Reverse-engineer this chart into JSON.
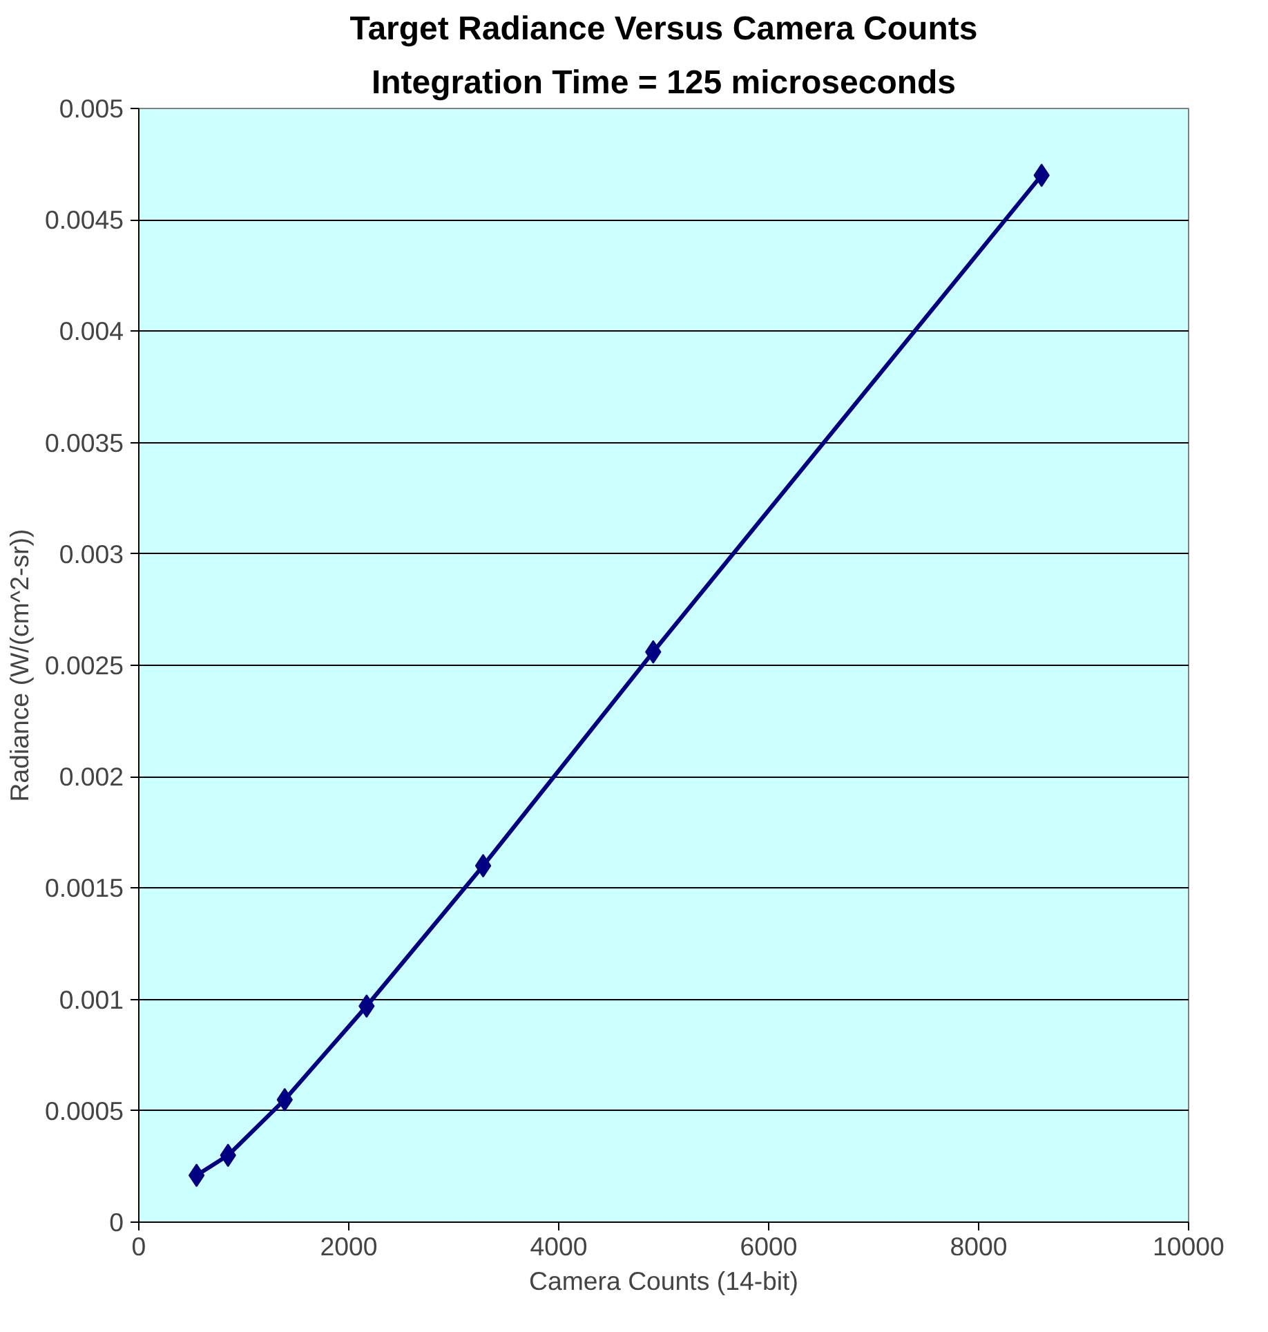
{
  "chart_data": {
    "type": "line",
    "title": "Target Radiance Versus Camera Counts",
    "subtitle": "Integration Time = 125 microseconds",
    "xlabel": "Camera Counts (14-bit)",
    "ylabel": "Radiance (W/(cm^2-sr))",
    "x": [
      550,
      850,
      1390,
      2170,
      3280,
      4900,
      8600
    ],
    "series": [
      {
        "color": "#000080",
        "values": [
          0.00021,
          0.0003,
          0.00055,
          0.00097,
          0.0016,
          0.00256,
          0.0047
        ]
      }
    ],
    "xlim": [
      0,
      10000
    ],
    "xticks": [
      0,
      2000,
      4000,
      6000,
      8000,
      10000
    ],
    "ylim": [
      0,
      0.005
    ],
    "yticks": [
      0,
      0.0005,
      0.001,
      0.0015,
      0.002,
      0.0025,
      0.003,
      0.0035,
      0.004,
      0.0045,
      0.005
    ],
    "grid": "y",
    "marker": "diamond",
    "line_style": "solid"
  }
}
